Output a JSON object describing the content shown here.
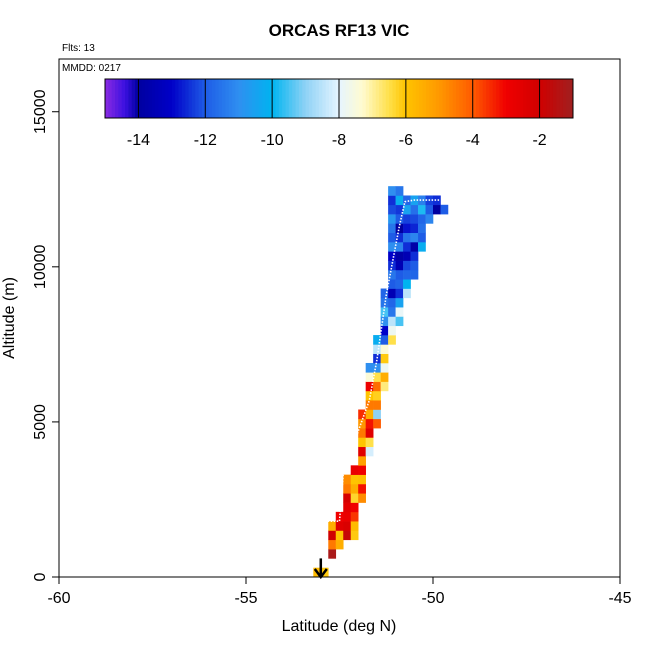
{
  "chart_data": {
    "type": "heatmap",
    "title": "ORCAS RF13 VIC",
    "flights_note": "Flts: 13",
    "date_note": "MMDD: 0217",
    "xlabel": "Latitude (deg N)",
    "ylabel": "Altitude (m)",
    "xlim": [
      -60,
      -45
    ],
    "ylim": [
      0,
      16700
    ],
    "x_ticks": [
      -60,
      -55,
      -50,
      -45
    ],
    "y_ticks": [
      0,
      5000,
      10000,
      15000
    ],
    "colorbar": {
      "range": [
        -15,
        -1
      ],
      "ticks": [
        -14,
        -12,
        -10,
        -8,
        -6,
        -4,
        -2
      ],
      "stops": [
        {
          "v": -15.0,
          "c": "#8a2be2"
        },
        {
          "v": -14.4,
          "c": "#3a10e0"
        },
        {
          "v": -14.0,
          "c": "#0000a0"
        },
        {
          "v": -13.0,
          "c": "#0000c8"
        },
        {
          "v": -12.0,
          "c": "#1e5ce6"
        },
        {
          "v": -11.0,
          "c": "#2f8ff0"
        },
        {
          "v": -10.0,
          "c": "#00b4f0"
        },
        {
          "v": -9.0,
          "c": "#8fd2f5"
        },
        {
          "v": -8.0,
          "c": "#e6f5ff"
        },
        {
          "v": -7.3,
          "c": "#fffbd0"
        },
        {
          "v": -6.5,
          "c": "#ffe04a"
        },
        {
          "v": -6.0,
          "c": "#ffc400"
        },
        {
          "v": -5.0,
          "c": "#ff9800"
        },
        {
          "v": -4.0,
          "c": "#ff5a00"
        },
        {
          "v": -3.0,
          "c": "#f00000"
        },
        {
          "v": -2.0,
          "c": "#d00000"
        },
        {
          "v": -1.0,
          "c": "#a02020"
        }
      ]
    },
    "flight_track_color": "#ffffff",
    "arrow_location": {
      "lat": -53.0,
      "alt": 600
    },
    "cell_size": {
      "dlat": 0.2,
      "dalt": 300
    },
    "columns": [
      {
        "lat": -53.2,
        "alt0": 0,
        "values": [
          -5.8
        ]
      },
      {
        "lat": -53.0,
        "alt0": 0,
        "values": [
          -6.1
        ]
      },
      {
        "lat": -52.8,
        "alt0": 600,
        "values": [
          -1.2,
          -4.5,
          -2.0,
          -5.5
        ]
      },
      {
        "lat": -52.6,
        "alt0": 900,
        "values": [
          -5.5,
          -6.0,
          -2.5,
          -3.0
        ]
      },
      {
        "lat": -52.4,
        "alt0": 1200,
        "values": [
          -1.8,
          -2.3,
          -2.8,
          -2.6,
          -2.2,
          -4.5,
          -4.8
        ]
      },
      {
        "lat": -52.2,
        "alt0": 1200,
        "values": [
          -6.1,
          -5.8,
          -3.6,
          -3.0,
          -6.3,
          -5.5,
          -6.0,
          -2.8
        ]
      },
      {
        "lat": -52.0,
        "alt0": 2400,
        "values": [
          -4.8,
          -3.2,
          -5.9,
          -3.0,
          -5.2,
          -2.5,
          -6.0,
          -4.5,
          -5.0,
          -3.5
        ]
      },
      {
        "lat": -51.8,
        "alt0": 3900,
        "values": [
          -8.2,
          -6.5,
          -2.5,
          -3.2,
          -5.5,
          -4.5,
          -6.0,
          -2.9,
          -7.4,
          -11.0
        ]
      },
      {
        "lat": -51.6,
        "alt0": 4800,
        "values": [
          -4.0,
          -9.0,
          -4.5,
          -6.2,
          -4.3,
          -6.5,
          -11.0,
          -12.5,
          -8.5,
          -10.2
        ]
      },
      {
        "lat": -51.4,
        "alt0": 6000,
        "values": [
          -6.8,
          -5.5,
          -7.8,
          -6.1,
          -7.4,
          -12.0,
          -13.0,
          -11.0,
          -9.5,
          -11.5,
          -11.8
        ]
      },
      {
        "lat": -51.2,
        "alt0": 7500,
        "values": [
          -6.5,
          -7.8,
          -8.5,
          -11.5,
          -11.8,
          -13.5,
          -12.0,
          -11.5,
          -12.5,
          -13.0,
          -11.0,
          -12.0,
          -11.5,
          -10.8,
          -12.2,
          -12.5,
          -11.0
        ]
      },
      {
        "lat": -51.0,
        "alt0": 8100,
        "values": [
          -9.5,
          -7.9,
          -10.5,
          -12.5,
          -11.8,
          -12.0,
          -13.5,
          -13.8,
          -11.2,
          -12.5,
          -14.0,
          -12.0,
          -12.4,
          -10.2,
          -11.5
        ]
      },
      {
        "lat": -50.8,
        "alt0": 9000,
        "values": [
          -8.5,
          -10.0,
          -11.8,
          -12.2,
          -13.5,
          -12.5,
          -11.5,
          -12.8,
          -12.3,
          -10.5,
          -11.8
        ]
      },
      {
        "lat": -50.6,
        "alt0": 9600,
        "values": [
          -11.8,
          -12.0,
          -12.5,
          -13.8,
          -11.2,
          -12.6,
          -12.2,
          -11.6,
          -10.5
        ]
      },
      {
        "lat": -50.4,
        "alt0": 10500,
        "values": [
          -10.2,
          -12.0,
          -11.6,
          -11.8,
          -9.8,
          -11.3
        ]
      },
      {
        "lat": -50.2,
        "alt0": 11400,
        "values": [
          -11.2,
          -12.0,
          -12.3
        ]
      },
      {
        "lat": -50.0,
        "alt0": 11700,
        "values": [
          -14.0,
          -12.5
        ]
      },
      {
        "lat": -49.8,
        "alt0": 11700,
        "values": [
          -12.0
        ]
      }
    ],
    "flight_track": [
      {
        "lat": -53.0,
        "alt": 0
      },
      {
        "lat": -53.0,
        "alt": 1300
      },
      {
        "lat": -52.9,
        "alt": 1500
      },
      {
        "lat": -52.9,
        "alt": 1800
      },
      {
        "lat": -52.5,
        "alt": 1800
      },
      {
        "lat": -52.4,
        "alt": 3300
      },
      {
        "lat": -52.0,
        "alt": 4700
      },
      {
        "lat": -51.7,
        "alt": 5700
      },
      {
        "lat": -51.5,
        "alt": 7000
      },
      {
        "lat": -51.25,
        "alt": 9100
      },
      {
        "lat": -50.9,
        "alt": 11300
      },
      {
        "lat": -50.75,
        "alt": 12100
      },
      {
        "lat": -50.5,
        "alt": 12150
      },
      {
        "lat": -49.8,
        "alt": 12150
      }
    ]
  }
}
